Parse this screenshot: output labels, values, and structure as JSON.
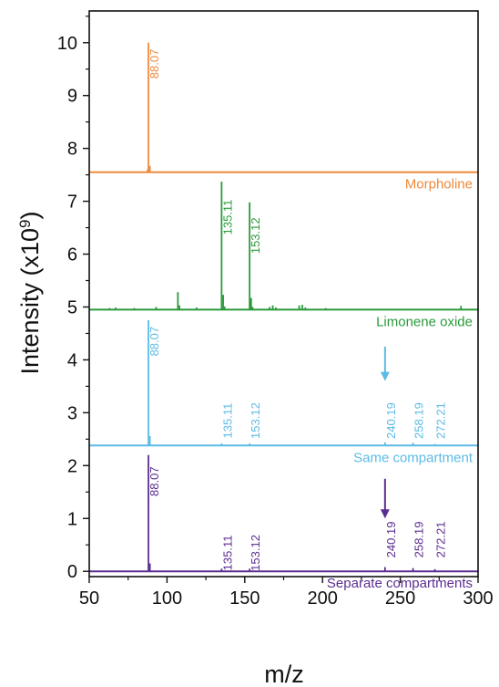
{
  "chart_data": {
    "type": "line",
    "xlabel": "m/z",
    "ylabel_main": "Intensity (x10",
    "ylabel_exp": "9",
    "ylabel_close": ")",
    "xlim": [
      50,
      300
    ],
    "ylim": [
      -0.1,
      10.6
    ],
    "x_ticks": [
      50,
      100,
      150,
      200,
      250,
      300
    ],
    "y_ticks": [
      0,
      1,
      2,
      3,
      4,
      5,
      6,
      7,
      8,
      9,
      10
    ],
    "series": [
      {
        "name": "Morpholine",
        "color": "#f08a3c",
        "baseline": 7.55,
        "peaks": [
          [
            87.5,
            0.05
          ],
          [
            88.07,
            2.45
          ],
          [
            89.0,
            0.12
          ]
        ],
        "labels": [
          {
            "mz": 88.07,
            "text": "88.07",
            "y": 9.6
          }
        ]
      },
      {
        "name": "Limonene oxide",
        "color": "#2a9a3a",
        "baseline": 4.95,
        "peaks": [
          [
            63,
            0.03
          ],
          [
            67,
            0.04
          ],
          [
            79,
            0.03
          ],
          [
            93,
            0.05
          ],
          [
            107.0,
            0.33
          ],
          [
            108.0,
            0.08
          ],
          [
            119,
            0.04
          ],
          [
            135.11,
            2.42
          ],
          [
            136.1,
            0.28
          ],
          [
            137.0,
            0.06
          ],
          [
            153.12,
            2.03
          ],
          [
            154.1,
            0.22
          ],
          [
            155.0,
            0.05
          ],
          [
            166,
            0.05
          ],
          [
            168,
            0.08
          ],
          [
            170,
            0.04
          ],
          [
            185,
            0.08
          ],
          [
            187,
            0.09
          ],
          [
            189,
            0.04
          ],
          [
            202,
            0.03
          ],
          [
            289,
            0.07
          ]
        ],
        "labels": [
          {
            "mz": 135.11,
            "text": "135.11",
            "y": 6.7
          },
          {
            "mz": 153.12,
            "text": "153.12",
            "y": 6.35
          }
        ]
      },
      {
        "name": "Same compartment",
        "color": "#5cbbe6",
        "baseline": 2.38,
        "peaks": [
          [
            88.07,
            2.37
          ],
          [
            89.0,
            0.18
          ],
          [
            135.11,
            0.04
          ],
          [
            153.12,
            0.04
          ],
          [
            240.19,
            0.06
          ],
          [
            258.19,
            0.05
          ],
          [
            272.21,
            0.03
          ]
        ],
        "labels": [
          {
            "mz": 88.07,
            "text": "88.07",
            "y": 4.35
          },
          {
            "mz": 135.11,
            "text": "135.11",
            "y": 2.85
          },
          {
            "mz": 153.12,
            "text": "153.12",
            "y": 2.85
          },
          {
            "mz": 240.19,
            "text": "240.19",
            "y": 2.85
          },
          {
            "mz": 258.19,
            "text": "258.19",
            "y": 2.85
          },
          {
            "mz": 272.21,
            "text": "272.21",
            "y": 2.85
          }
        ],
        "arrow": {
          "mz": 240.19,
          "from": 4.25,
          "to": 3.6
        }
      },
      {
        "name": "Separate compartments",
        "color": "#5b2d90",
        "baseline": 0.0,
        "peaks": [
          [
            88.07,
            2.2
          ],
          [
            89.0,
            0.15
          ],
          [
            135.11,
            0.05
          ],
          [
            153.12,
            0.05
          ],
          [
            240.19,
            0.08
          ],
          [
            258.19,
            0.06
          ],
          [
            272.21,
            0.04
          ]
        ],
        "labels": [
          {
            "mz": 88.07,
            "text": "88.07",
            "y": 1.7
          },
          {
            "mz": 135.11,
            "text": "135.11",
            "y": 0.35
          },
          {
            "mz": 153.12,
            "text": "153.12",
            "y": 0.35
          },
          {
            "mz": 240.19,
            "text": "240.19",
            "y": 0.6
          },
          {
            "mz": 258.19,
            "text": "258.19",
            "y": 0.6
          },
          {
            "mz": 272.21,
            "text": "272.21",
            "y": 0.6
          }
        ],
        "arrow": {
          "mz": 240.19,
          "from": 1.75,
          "to": 1.0
        }
      }
    ]
  }
}
